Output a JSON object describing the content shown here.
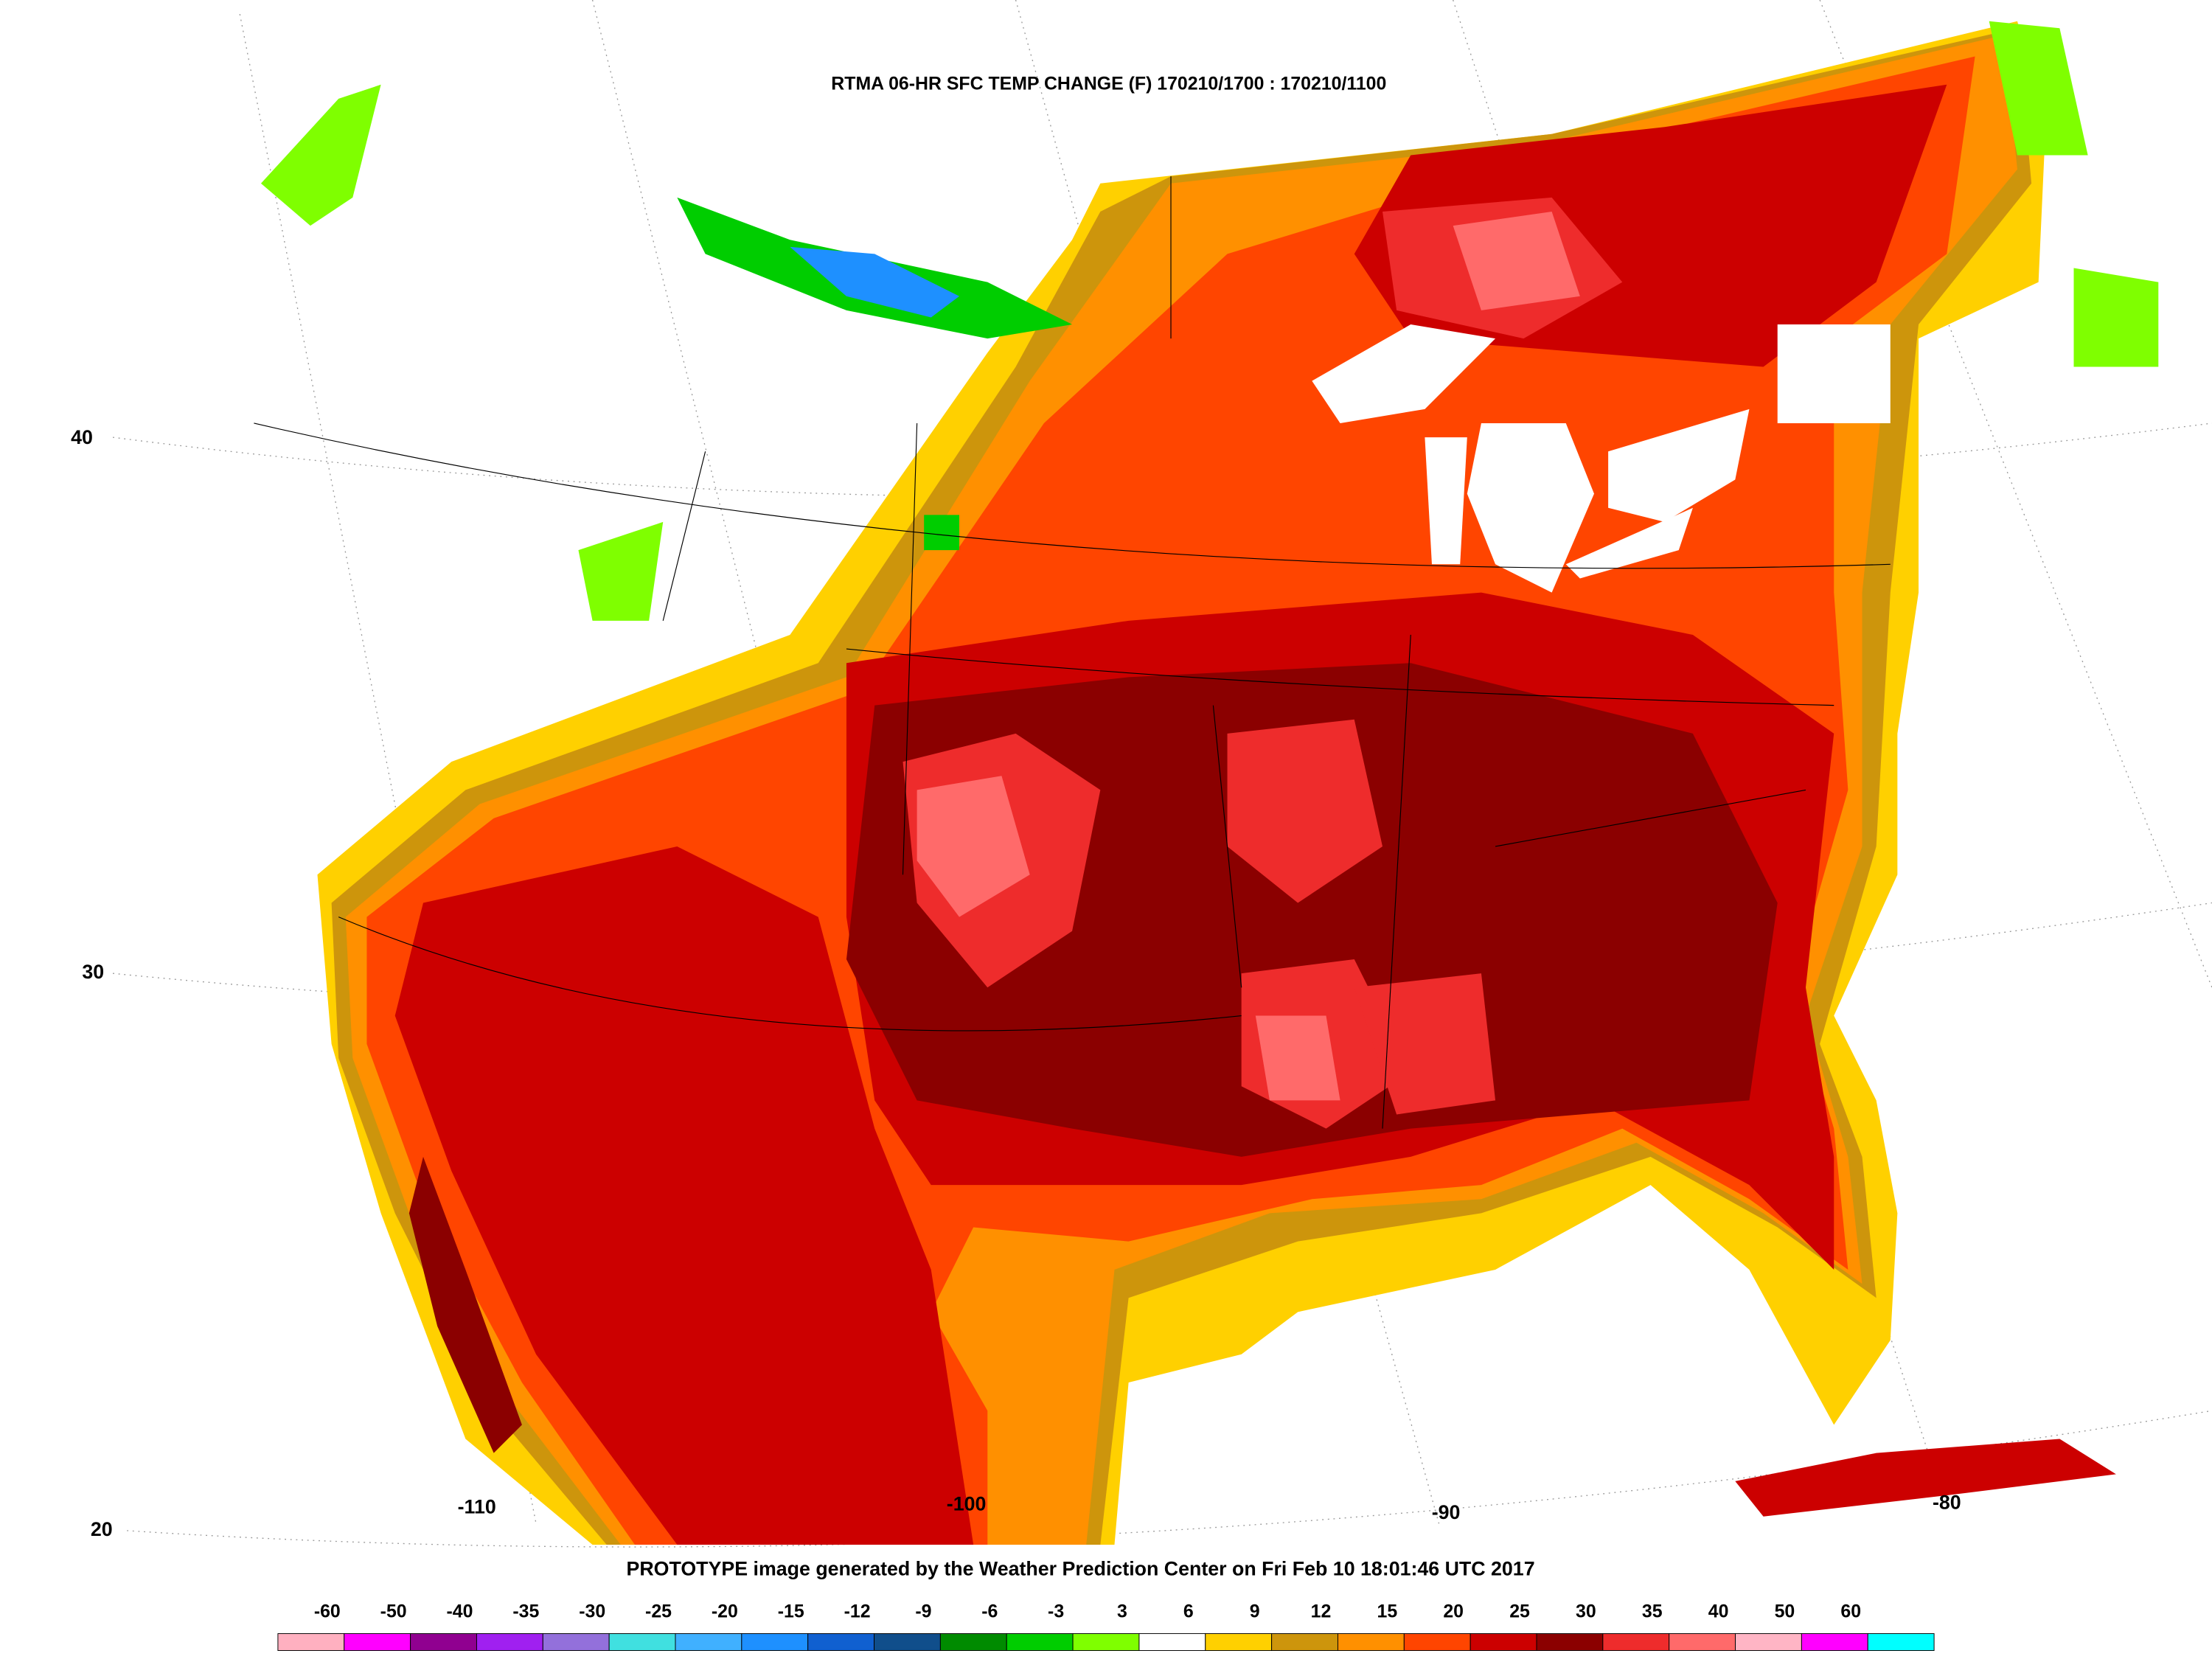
{
  "title": "RTMA 06-HR SFC TEMP CHANGE (F) 170210/1700 : 170210/1100",
  "footer": "PROTOTYPE image generated by the Weather Prediction Center on Fri Feb 10 18:01:46 UTC 2017",
  "latitude_labels": [
    40,
    30,
    20
  ],
  "longitude_labels": [
    -110,
    -100,
    -90,
    -80
  ],
  "colorbar": {
    "labels": [
      -60,
      -50,
      -40,
      -35,
      -30,
      -25,
      -20,
      -15,
      -12,
      -9,
      -6,
      -3,
      3,
      6,
      9,
      12,
      15,
      20,
      25,
      30,
      35,
      40,
      50,
      60
    ],
    "colors": [
      "#ffb0c0",
      "#ff00ff",
      "#900090",
      "#a020f0",
      "#9370db",
      "#40e0e0",
      "#40b0ff",
      "#1e90ff",
      "#1060d0",
      "#104e8b",
      "#008b00",
      "#00cd00",
      "#7fff00",
      "#ffffff",
      "#ffd000",
      "#cd950c",
      "#ff9000",
      "#ff4500",
      "#cc0000",
      "#8b0000",
      "#ee2c2c",
      "#ff6a6a",
      "#ffb5c5",
      "#ff00ff",
      "#00ffff"
    ]
  }
}
